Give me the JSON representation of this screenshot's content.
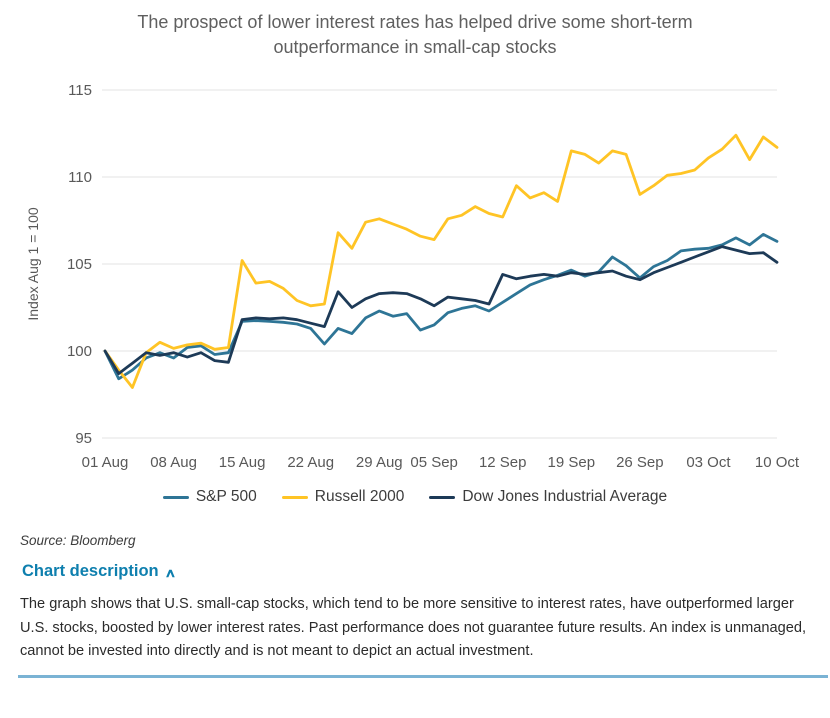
{
  "title": "The prospect of lower interest rates has helped drive some short-term outperformance in small-cap stocks",
  "source": "Source: Bloomberg",
  "chart_description": {
    "toggle_label": "Chart description",
    "chevron_glyph": "∧",
    "body": "The graph shows that U.S. small-cap stocks, which tend to be more sensitive to interest rates, have outperformed larger U.S. stocks, boosted by lower interest rates. Past performance does not guarantee future results. An index is unmanaged, cannot be invested into directly and is not meant to depict an actual investment."
  },
  "colors": {
    "sp500": "#2e7596",
    "russell2000": "#ffc425",
    "dow": "#1d3a57",
    "axis_text": "#595959",
    "gridline": "#e3e3e3",
    "link_blue": "#0e7fae",
    "divider_blue": "#7ab3d4"
  },
  "chart_data": {
    "type": "line",
    "title": "The prospect of lower interest rates has helped drive some short-term outperformance in small-cap stocks",
    "xlabel": "",
    "ylabel": "Index Aug 1 = 100",
    "ylim": [
      95,
      115
    ],
    "yticks": [
      95,
      100,
      105,
      110,
      115
    ],
    "grid": "horizontal",
    "legend_position": "bottom",
    "x_tick_labels": [
      "01 Aug",
      "08 Aug",
      "15 Aug",
      "22 Aug",
      "29 Aug",
      "05 Sep",
      "12 Sep",
      "19 Sep",
      "26 Sep",
      "03 Oct",
      "10 Oct"
    ],
    "x_tick_indices": [
      0,
      5,
      10,
      15,
      20,
      24,
      29,
      34,
      39,
      44,
      49
    ],
    "n_points": 50,
    "series": [
      {
        "name": "S&P 500",
        "color": "#2e7596",
        "values": [
          100,
          98.4,
          98.9,
          99.6,
          99.9,
          99.6,
          100.2,
          100.3,
          99.8,
          99.9,
          101.7,
          101.75,
          101.7,
          101.65,
          101.55,
          101.3,
          100.4,
          101.3,
          101.0,
          101.9,
          102.3,
          102.0,
          102.15,
          101.2,
          101.5,
          102.2,
          102.45,
          102.6,
          102.3,
          102.8,
          103.3,
          103.8,
          104.1,
          104.35,
          104.65,
          104.3,
          104.55,
          105.4,
          104.9,
          104.2,
          104.85,
          105.2,
          105.75,
          105.85,
          105.9,
          106.1,
          106.5,
          106.1,
          106.7,
          106.3
        ]
      },
      {
        "name": "Russell 2000",
        "color": "#ffc425",
        "values": [
          100,
          98.9,
          97.9,
          99.9,
          100.5,
          100.15,
          100.35,
          100.45,
          100.1,
          100.2,
          105.2,
          103.9,
          104.0,
          103.6,
          102.9,
          102.6,
          102.7,
          106.8,
          105.9,
          107.4,
          107.6,
          107.3,
          107.0,
          106.6,
          106.4,
          107.6,
          107.8,
          108.3,
          107.9,
          107.7,
          109.5,
          108.8,
          109.1,
          108.6,
          111.5,
          111.3,
          110.8,
          111.5,
          111.3,
          109.0,
          109.5,
          110.1,
          110.2,
          110.4,
          111.1,
          111.6,
          112.4,
          111.0,
          112.3,
          111.7
        ]
      },
      {
        "name": "Dow Jones Industrial Average",
        "color": "#1d3a57",
        "values": [
          100,
          98.7,
          99.3,
          99.9,
          99.75,
          99.9,
          99.65,
          99.9,
          99.45,
          99.35,
          101.8,
          101.9,
          101.85,
          101.9,
          101.8,
          101.6,
          101.4,
          103.4,
          102.5,
          103.0,
          103.3,
          103.35,
          103.3,
          103.0,
          102.6,
          103.1,
          103.0,
          102.9,
          102.7,
          104.4,
          104.15,
          104.3,
          104.4,
          104.3,
          104.5,
          104.4,
          104.5,
          104.6,
          104.3,
          104.1,
          104.5,
          104.8,
          105.1,
          105.4,
          105.7,
          106.0,
          105.8,
          105.6,
          105.65,
          105.1
        ]
      }
    ]
  }
}
